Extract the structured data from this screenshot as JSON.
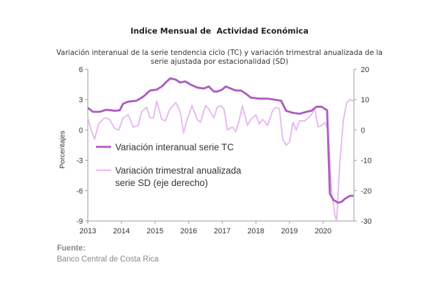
{
  "title": "Indice Mensual de  Actividad Económica",
  "subtitle": "Variación interanual de la serie tendencia ciclo (TC) y variación trimestral anualizada de la serie ajustada por estacionalidad (SD)",
  "source": {
    "label": "Fuente:",
    "text": "Banco Central de Costa Rica"
  },
  "colors": {
    "tc": "#b05cc0",
    "sd": "#e8b8f0",
    "axis": "#999999",
    "text": "#333333"
  },
  "chart_data": {
    "type": "line",
    "ylabel": "Porcentajes",
    "xlim": [
      2013.0,
      2020.917
    ],
    "ylim_left": [
      -9,
      6
    ],
    "ylim_right": [
      -30,
      20
    ],
    "yticks_left": [
      6,
      3,
      0,
      -3,
      -6,
      -9
    ],
    "yticks_right": [
      20,
      10,
      0,
      -10,
      -20,
      -30
    ],
    "xticks": [
      2013,
      2014,
      2015,
      2016,
      2017,
      2018,
      2019,
      2020
    ],
    "grid": false,
    "legend": "inside-center-left",
    "series": [
      {
        "name": "Variación interanual serie TC",
        "axis": "left",
        "points": [
          [
            2013.0,
            2.2
          ],
          [
            2013.15,
            1.8
          ],
          [
            2013.35,
            1.8
          ],
          [
            2013.55,
            2.0
          ],
          [
            2013.8,
            1.9
          ],
          [
            2013.95,
            1.95
          ],
          [
            2014.05,
            2.6
          ],
          [
            2014.2,
            2.8
          ],
          [
            2014.45,
            2.9
          ],
          [
            2014.65,
            3.3
          ],
          [
            2014.85,
            3.9
          ],
          [
            2015.05,
            4.0
          ],
          [
            2015.2,
            4.3
          ],
          [
            2015.35,
            4.8
          ],
          [
            2015.45,
            5.1
          ],
          [
            2015.6,
            5.0
          ],
          [
            2015.75,
            4.7
          ],
          [
            2015.9,
            4.8
          ],
          [
            2016.05,
            4.5
          ],
          [
            2016.25,
            4.2
          ],
          [
            2016.45,
            4.1
          ],
          [
            2016.6,
            4.3
          ],
          [
            2016.75,
            3.8
          ],
          [
            2016.85,
            3.8
          ],
          [
            2017.0,
            4.0
          ],
          [
            2017.1,
            4.3
          ],
          [
            2017.25,
            4.1
          ],
          [
            2017.4,
            3.9
          ],
          [
            2017.55,
            3.9
          ],
          [
            2017.7,
            3.6
          ],
          [
            2017.85,
            3.2
          ],
          [
            2018.1,
            3.1
          ],
          [
            2018.35,
            3.1
          ],
          [
            2018.55,
            3.0
          ],
          [
            2018.75,
            2.9
          ],
          [
            2018.9,
            1.9
          ],
          [
            2019.1,
            1.7
          ],
          [
            2019.3,
            1.6
          ],
          [
            2019.5,
            1.8
          ],
          [
            2019.65,
            1.9
          ],
          [
            2019.8,
            2.3
          ],
          [
            2019.95,
            2.3
          ],
          [
            2020.05,
            2.1
          ],
          [
            2020.12,
            1.95
          ],
          [
            2020.2,
            -6.3
          ],
          [
            2020.3,
            -6.9
          ],
          [
            2020.45,
            -7.2
          ],
          [
            2020.55,
            -7.1
          ],
          [
            2020.65,
            -6.8
          ],
          [
            2020.8,
            -6.5
          ],
          [
            2020.9,
            -6.5
          ]
        ]
      },
      {
        "name": "Variación trimestral anualizada serie SD (eje derecho)",
        "axis": "right",
        "points": [
          [
            2013.0,
            4
          ],
          [
            2013.1,
            0
          ],
          [
            2013.2,
            -3
          ],
          [
            2013.32,
            2
          ],
          [
            2013.5,
            4
          ],
          [
            2013.65,
            3.5
          ],
          [
            2013.8,
            0.5
          ],
          [
            2013.92,
            0
          ],
          [
            2014.05,
            4
          ],
          [
            2014.2,
            5
          ],
          [
            2014.35,
            1
          ],
          [
            2014.5,
            1.5
          ],
          [
            2014.6,
            6
          ],
          [
            2014.75,
            7.5
          ],
          [
            2014.85,
            4
          ],
          [
            2014.95,
            4
          ],
          [
            2015.05,
            9.5
          ],
          [
            2015.2,
            3.5
          ],
          [
            2015.3,
            3
          ],
          [
            2015.45,
            7
          ],
          [
            2015.62,
            9
          ],
          [
            2015.75,
            6
          ],
          [
            2015.85,
            -1
          ],
          [
            2015.93,
            2.5
          ],
          [
            2016.1,
            8
          ],
          [
            2016.25,
            3.5
          ],
          [
            2016.35,
            2.5
          ],
          [
            2016.5,
            8
          ],
          [
            2016.6,
            7
          ],
          [
            2016.75,
            4
          ],
          [
            2016.85,
            7.5
          ],
          [
            2016.95,
            8
          ],
          [
            2017.05,
            7
          ],
          [
            2017.15,
            0
          ],
          [
            2017.3,
            1
          ],
          [
            2017.4,
            -0.5
          ],
          [
            2017.5,
            3
          ],
          [
            2017.6,
            8
          ],
          [
            2017.75,
            1.5
          ],
          [
            2017.85,
            3.5
          ],
          [
            2018.0,
            5
          ],
          [
            2018.1,
            2
          ],
          [
            2018.2,
            3.5
          ],
          [
            2018.35,
            1.5
          ],
          [
            2018.5,
            6.5
          ],
          [
            2018.6,
            7.5
          ],
          [
            2018.7,
            7
          ],
          [
            2018.8,
            -3
          ],
          [
            2018.9,
            -5
          ],
          [
            2019.0,
            -4
          ],
          [
            2019.1,
            2.5
          ],
          [
            2019.2,
            0
          ],
          [
            2019.3,
            3
          ],
          [
            2019.45,
            3
          ],
          [
            2019.55,
            4
          ],
          [
            2019.65,
            5
          ],
          [
            2019.75,
            7
          ],
          [
            2019.85,
            1
          ],
          [
            2019.95,
            1.5
          ],
          [
            2020.05,
            2.5
          ],
          [
            2020.15,
            0
          ],
          [
            2020.25,
            -20
          ],
          [
            2020.35,
            -28
          ],
          [
            2020.4,
            -30
          ],
          [
            2020.5,
            -10
          ],
          [
            2020.6,
            3
          ],
          [
            2020.7,
            9
          ],
          [
            2020.8,
            10
          ],
          [
            2020.9,
            9.5
          ]
        ]
      }
    ]
  }
}
